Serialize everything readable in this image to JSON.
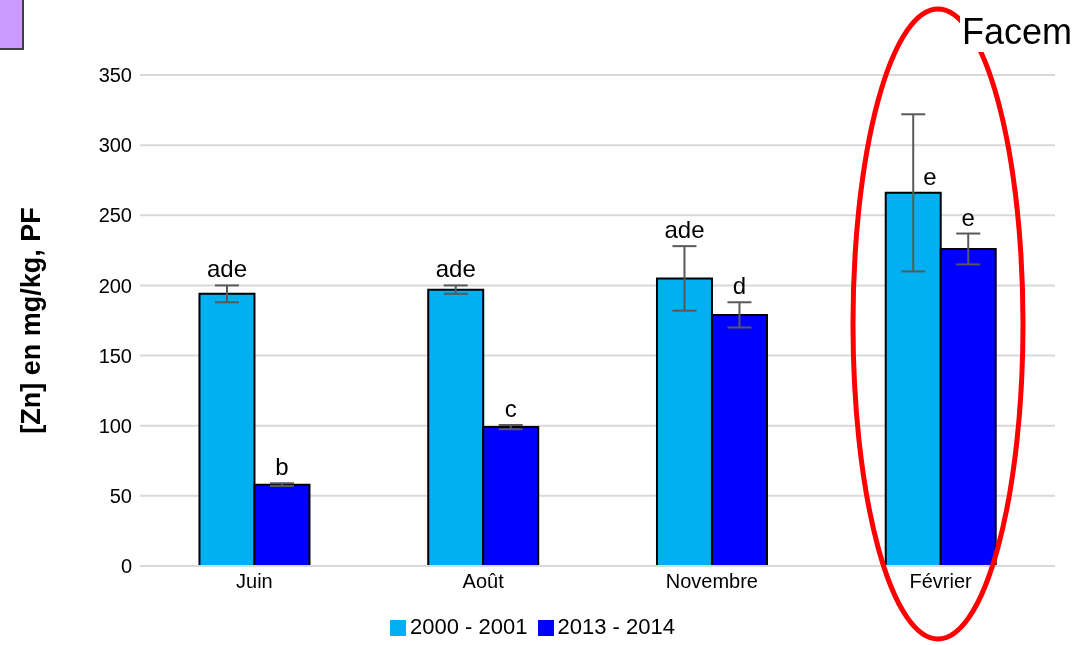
{
  "chart_data": {
    "type": "bar",
    "ylabel": "[Zn] en mg/kg, PF",
    "annotations": [
      "Facem"
    ],
    "categories": [
      "Juin",
      "Août",
      "Novembre",
      "Février"
    ],
    "series": [
      {
        "name": "2000 - 2001",
        "color": "#00b0f0",
        "values": [
          194,
          197,
          205,
          266
        ],
        "errors": [
          6,
          3,
          23,
          56
        ],
        "value_labels": [
          "ade",
          "ade",
          "ade",
          "e"
        ]
      },
      {
        "name": "2013 - 2014",
        "color": "#0000ff",
        "values": [
          58,
          99,
          179,
          226
        ],
        "errors": [
          1,
          1.5,
          9,
          11
        ],
        "value_labels": [
          "b",
          "c",
          "d",
          "e"
        ]
      }
    ],
    "ylim": [
      0,
      350
    ],
    "yticks": [
      0,
      50,
      100,
      150,
      200,
      250,
      300,
      350
    ],
    "grid": "y",
    "legend": "bottom"
  }
}
